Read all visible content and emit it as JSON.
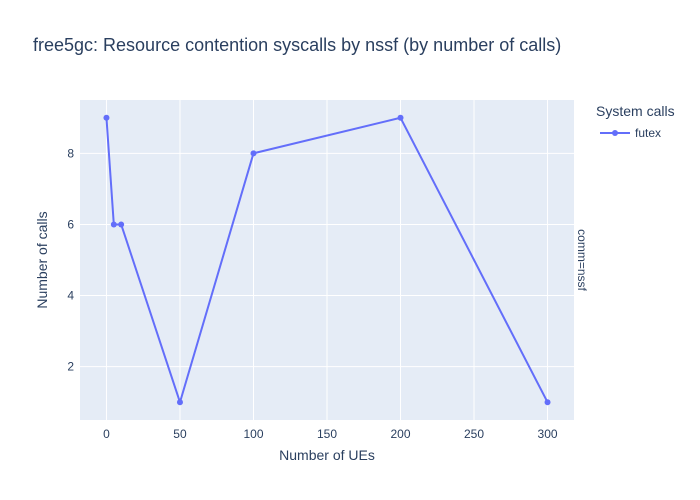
{
  "chart_data": {
    "type": "line",
    "title": "free5gc: Resource contention syscalls by nssf (by number of calls)",
    "xlabel": "Number of UEs",
    "ylabel": "Number of calls",
    "xlim": [
      -18,
      318
    ],
    "ylim": [
      0.5,
      9.5
    ],
    "x_ticks": [
      0,
      50,
      100,
      150,
      200,
      250,
      300
    ],
    "y_ticks": [
      2,
      4,
      6,
      8
    ],
    "grid": true,
    "legend": {
      "title": "System calls",
      "placement": "right",
      "entries": [
        "futex"
      ]
    },
    "facet_label": "comm=nssf",
    "series": [
      {
        "name": "futex",
        "color": "#636efa",
        "x": [
          0,
          5,
          10,
          50,
          100,
          200,
          300
        ],
        "y": [
          9,
          6,
          6,
          1,
          8,
          9,
          1
        ]
      }
    ]
  },
  "colors": {
    "plot_bg": "#e5ecf6",
    "grid": "#ffffff",
    "text": "#2a3f5f"
  }
}
